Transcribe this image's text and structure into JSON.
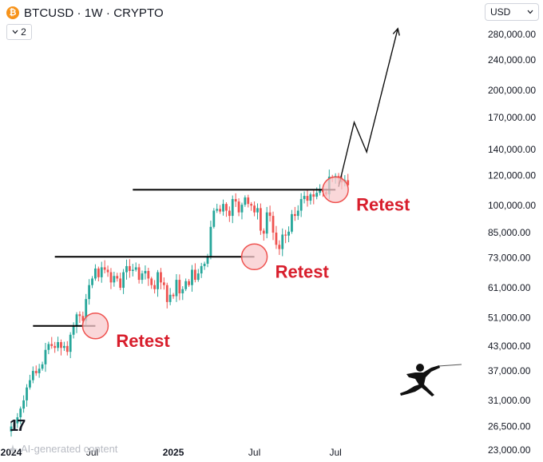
{
  "header": {
    "coin_symbol": "₿",
    "title": "BTCUSD · 1W · CRYPTO",
    "collapse_count": "2",
    "currency": "USD"
  },
  "footer": {
    "ai_note": "AI-generated content",
    "tv_mark": "17"
  },
  "colors": {
    "up": "#26a69a",
    "down": "#ef5350",
    "annotation": "#d81e2c",
    "circle_fill": "#f8c9cc",
    "line": "#000000"
  },
  "chart_data": {
    "type": "candlestick",
    "title": "BTCUSD · 1W · CRYPTO",
    "y_scale": "log",
    "ylim": [
      23000,
      300000
    ],
    "y_ticks": [
      280000,
      240000,
      200000,
      170000,
      140000,
      120000,
      100000,
      85000,
      73000,
      61000,
      51000,
      43000,
      37000,
      31000,
      26500,
      23000
    ],
    "y_tick_labels": [
      "280,000.00",
      "240,000.00",
      "200,000.00",
      "170,000.00",
      "140,000.00",
      "120,000.00",
      "100,000.00",
      "85,000.00",
      "73,000.00",
      "61,000.00",
      "51,000.00",
      "43,000.00",
      "37,000.00",
      "31,000.00",
      "26,500.00",
      "23,000.00"
    ],
    "x_ticks": [
      {
        "label": "2024",
        "week": 0,
        "bold": true
      },
      {
        "label": "Jul",
        "week": 26,
        "bold": false
      },
      {
        "label": "2025",
        "week": 52,
        "bold": true
      },
      {
        "label": "Jul",
        "week": 78,
        "bold": false
      },
      {
        "label": "Jul",
        "week": 104,
        "bold": false
      }
    ],
    "weekly_close": [
      26500,
      27000,
      28000,
      29500,
      31000,
      33500,
      35000,
      37000,
      36500,
      37500,
      38500,
      42000,
      43500,
      43000,
      42500,
      44000,
      42500,
      43000,
      41500,
      46000,
      48500,
      52000,
      51500,
      50000,
      57000,
      62000,
      64500,
      68500,
      65000,
      69000,
      68000,
      67000,
      63000,
      65500,
      64500,
      61000,
      67000,
      69500,
      67500,
      68000,
      69000,
      64000,
      66500,
      67500,
      64500,
      62000,
      60500,
      67000,
      63000,
      62000,
      56000,
      58500,
      58000,
      64000,
      59000,
      60500,
      63500,
      62000,
      68000,
      64000,
      66500,
      69500,
      70500,
      73500,
      88000,
      97000,
      98000,
      96500,
      101000,
      97000,
      94000,
      104000,
      102500,
      96000,
      100500,
      105000,
      101000,
      100000,
      96000,
      98500,
      86000,
      84500,
      96000,
      94000,
      85000,
      79000,
      77000,
      84000,
      83500,
      85500,
      95000,
      94000,
      97000,
      104000,
      106000,
      103000,
      107000,
      105500,
      108000,
      110000,
      108500,
      107000,
      119000,
      118000,
      119500,
      118000,
      115000,
      116500,
      113000
    ],
    "levels": [
      {
        "price": 48500,
        "from_week": 7,
        "to_week": 27
      },
      {
        "price": 73500,
        "from_week": 14,
        "to_week": 78
      },
      {
        "price": 110000,
        "from_week": 39,
        "to_week": 104
      }
    ],
    "retests": [
      {
        "label": "Retest",
        "week": 27,
        "price": 48500
      },
      {
        "label": "Retest",
        "week": 78,
        "price": 73500
      },
      {
        "label": "Retest",
        "week": 104,
        "price": 110000
      }
    ],
    "projection": [
      {
        "week": 105,
        "price": 112000
      },
      {
        "week": 110,
        "price": 165000
      },
      {
        "week": 114,
        "price": 138000
      },
      {
        "week": 124,
        "price": 290000
      }
    ],
    "annotations": [
      "Retest",
      "Retest",
      "Retest"
    ]
  }
}
